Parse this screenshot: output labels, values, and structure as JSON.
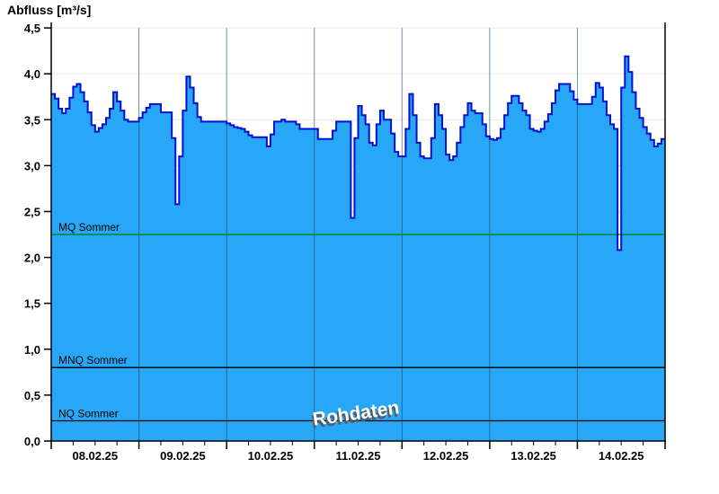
{
  "title": "Abfluss [m³/s]",
  "watermark": "Rohdaten",
  "colors": {
    "background": "#FFFFFF",
    "area_fill": "#29A7F7",
    "area_line": "#0010D0",
    "grid_horizontal": "#E7E7E7",
    "grid_vertical": "rgba(25,65,90,0.6)",
    "axis": "#000000",
    "mq_line": "#008000",
    "mnq_line": "#000000",
    "nq_line": "#000000",
    "watermark_fill": "#FFFFFF",
    "watermark_shadow": "#5A5A5A"
  },
  "chart_data": {
    "type": "area",
    "title": "Abfluss [m³/s]",
    "ylabel": "Abfluss [m³/s]",
    "xlabel": "",
    "ylim": [
      0,
      4.5
    ],
    "ytick_step": 0.5,
    "ytick_labels": [
      "0,0",
      "0,5",
      "1,0",
      "1,5",
      "2,0",
      "2,5",
      "3,0",
      "3,5",
      "4,0",
      "4,5"
    ],
    "x_tick_labels": [
      "08.02.25",
      "09.02.25",
      "10.02.25",
      "11.02.25",
      "12.02.25",
      "13.02.25",
      "14.02.25"
    ],
    "x_range_days": 7,
    "sample_interval_hours": 1,
    "grid": true,
    "legend": "none",
    "annotation": "Rohdaten",
    "series": [
      {
        "name": "Abfluss Rohdaten",
        "unit": "m³/s",
        "values": [
          3.78,
          3.73,
          3.62,
          3.57,
          3.62,
          3.74,
          3.86,
          3.89,
          3.8,
          3.7,
          3.58,
          3.44,
          3.37,
          3.41,
          3.45,
          3.52,
          3.62,
          3.8,
          3.7,
          3.6,
          3.5,
          3.48,
          3.48,
          3.48,
          3.52,
          3.58,
          3.63,
          3.67,
          3.67,
          3.67,
          3.58,
          3.58,
          3.58,
          3.3,
          2.58,
          3.1,
          3.6,
          3.97,
          3.85,
          3.68,
          3.53,
          3.48,
          3.48,
          3.48,
          3.48,
          3.48,
          3.48,
          3.48,
          3.46,
          3.44,
          3.42,
          3.41,
          3.4,
          3.37,
          3.33,
          3.31,
          3.31,
          3.31,
          3.31,
          3.21,
          3.34,
          3.48,
          3.48,
          3.5,
          3.48,
          3.48,
          3.48,
          3.45,
          3.4,
          3.4,
          3.4,
          3.4,
          3.4,
          3.29,
          3.29,
          3.29,
          3.29,
          3.38,
          3.48,
          3.48,
          3.48,
          3.48,
          2.43,
          3.3,
          3.65,
          3.55,
          3.45,
          3.25,
          3.22,
          3.45,
          3.6,
          3.5,
          3.5,
          3.35,
          3.15,
          3.1,
          3.1,
          3.4,
          3.78,
          3.55,
          3.25,
          3.1,
          3.08,
          3.08,
          3.3,
          3.67,
          3.55,
          3.4,
          3.12,
          3.06,
          3.1,
          3.25,
          3.42,
          3.55,
          3.68,
          3.6,
          3.57,
          3.57,
          3.45,
          3.32,
          3.29,
          3.28,
          3.3,
          3.4,
          3.55,
          3.68,
          3.76,
          3.76,
          3.68,
          3.6,
          3.55,
          3.4,
          3.38,
          3.37,
          3.4,
          3.48,
          3.56,
          3.68,
          3.82,
          3.89,
          3.89,
          3.89,
          3.81,
          3.72,
          3.67,
          3.67,
          3.67,
          3.67,
          3.75,
          3.9,
          3.85,
          3.7,
          3.55,
          3.45,
          3.4,
          2.08,
          3.85,
          4.19,
          4.02,
          3.8,
          3.62,
          3.52,
          3.42,
          3.35,
          3.28,
          3.21,
          3.24,
          3.29
        ]
      }
    ],
    "reference_lines": [
      {
        "label": "MQ Sommer",
        "value": 2.25,
        "color": "#008000"
      },
      {
        "label": "MNQ Sommer",
        "value": 0.8,
        "color": "#000000"
      },
      {
        "label": "NQ Sommer",
        "value": 0.22,
        "color": "#000000"
      }
    ]
  }
}
